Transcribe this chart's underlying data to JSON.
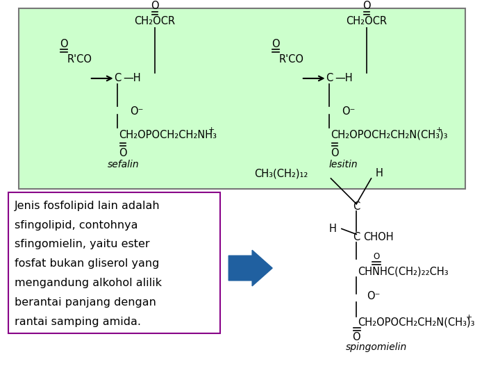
{
  "background_color": "#ffffff",
  "top_box_color": "#ccffcc",
  "text_box_color": "#ffffff",
  "sefalin_label": "sefalin",
  "lesitin_label": "lesitin",
  "spingomielin_label": "spingomielin",
  "description_lines": [
    "Jenis fosfolipid lain adalah",
    "sfingolipid, contohnya",
    "sfingomielin, yaitu ester",
    "fosfat bukan gliserol yang",
    "mengandung alkohol alilik",
    "berantai panjang dengan",
    "rantai samping amida."
  ],
  "arrow_color": "#2060a0"
}
